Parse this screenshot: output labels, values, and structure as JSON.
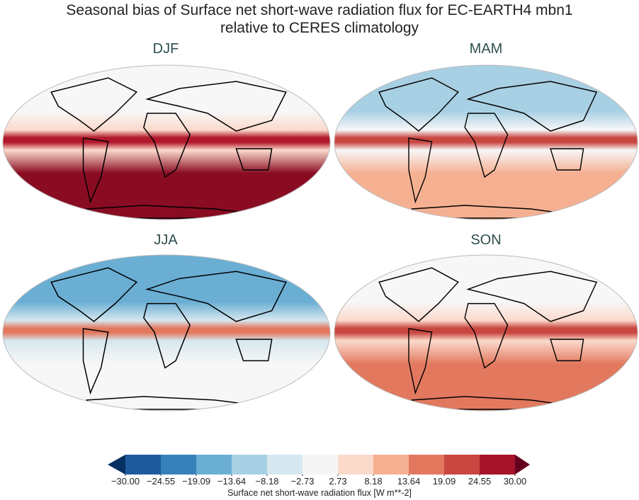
{
  "title_line1": "Seasonal bias of Surface net short-wave radiation flux for EC-EARTH4 mbn1",
  "title_line2": "relative to CERES climatology",
  "panels": [
    {
      "label": "DJF",
      "south": "#8a0c22",
      "equator": "#b2182b",
      "north": "#f7f7f7",
      "tropics": "#fbdacc"
    },
    {
      "label": "MAM",
      "south": "#f5b092",
      "equator": "#c94741",
      "north": "#a8d0e4",
      "tropics": "#f7f7f7"
    },
    {
      "label": "JJA",
      "south": "#f7f7f7",
      "equator": "#e2795f",
      "north": "#6aaed3",
      "tropics": "#d6e7f0"
    },
    {
      "label": "SON",
      "south": "#e2795f",
      "equator": "#c94741",
      "north": "#f7f7f7",
      "tropics": "#fbdacc"
    }
  ],
  "colorbar": {
    "label": "Surface net short-wave radiation flux [W m**-2]",
    "ticks": [
      "−30.00",
      "−24.55",
      "−19.09",
      "−13.64",
      "−8.18",
      "−2.73",
      "2.73",
      "8.18",
      "13.64",
      "19.09",
      "24.55",
      "30.00"
    ],
    "colors": [
      "#1f5a9e",
      "#3681ba",
      "#6aaed3",
      "#a8d0e4",
      "#d6e7f0",
      "#f5f5f5",
      "#fbdacc",
      "#f5b092",
      "#e2795f",
      "#c94741",
      "#a51429"
    ],
    "under": "#053061",
    "over": "#67001f"
  }
}
